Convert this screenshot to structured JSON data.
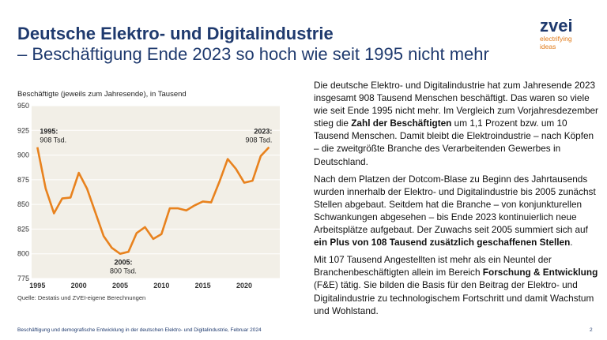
{
  "header": {
    "title": "Deutsche Elektro- und Digitalindustrie",
    "subtitle": "– Beschäftigung Ende 2023 so hoch wie seit 1995 nicht mehr"
  },
  "logo": {
    "word": "zvei",
    "line1": "electrifying",
    "line2": "ideas"
  },
  "chart_data": {
    "type": "line",
    "title": "Beschäftigte (jeweils zum Jahresende), in Tausend",
    "xlabel": "",
    "ylabel": "",
    "x": [
      1995,
      1996,
      1997,
      1998,
      1999,
      2000,
      2001,
      2002,
      2003,
      2004,
      2005,
      2006,
      2007,
      2008,
      2009,
      2010,
      2011,
      2012,
      2013,
      2014,
      2015,
      2016,
      2017,
      2018,
      2019,
      2020,
      2021,
      2022,
      2023
    ],
    "values": [
      908,
      866,
      841,
      856,
      857,
      882,
      866,
      842,
      818,
      806,
      800,
      802,
      821,
      827,
      815,
      820,
      846,
      846,
      844,
      849,
      853,
      852,
      873,
      896,
      886,
      872,
      874,
      899,
      908
    ],
    "ylim": [
      775,
      950
    ],
    "xlim": [
      1994.3,
      2024.3
    ],
    "yticks": [
      "950",
      "925",
      "900",
      "875",
      "850",
      "825",
      "800",
      "775"
    ],
    "xticks": [
      "1995",
      "2000",
      "2005",
      "2010",
      "2015",
      "2020"
    ],
    "grid": true,
    "line_color": "#e8821e",
    "background_color": "#f2efe7",
    "annotations": {
      "start": {
        "year": "1995:",
        "value": "908 Tsd."
      },
      "min": {
        "year": "2005:",
        "value": "800 Tsd."
      },
      "end": {
        "year": "2023:",
        "value": "908 Tsd."
      }
    }
  },
  "source": "Quelle: Destatis und ZVEI-eigene Berechnungen",
  "body": {
    "p1_a": "Die deutsche Elektro- und Digitalindustrie hat zum Jahresende 2023 insgesamt 908 Tausend Menschen beschäftigt. Das waren so viele wie seit Ende 1995 nicht mehr. Im Vergleich zum Vorjahresdezember stieg die ",
    "p1_b": "Zahl der Beschäftigten",
    "p1_c": " um 1,1 Prozent bzw. um 10 Tausend Menschen. Damit bleibt die Elektroindustrie – nach Köpfen – die zweitgrößte Branche des Verarbeitenden Gewerbes in Deutschland.",
    "p2_a": "Nach dem Platzen der Dotcom-Blase zu Beginn des Jahrtausends wurden innerhalb der Elektro- und Digitalindustrie bis 2005 zunächst Stellen abgebaut. Seitdem hat die Branche – von konjunkturellen Schwankungen abgesehen – bis Ende 2023 kontinuierlich neue Arbeitsplätze aufgebaut. Der Zuwachs seit 2005 summiert sich auf ",
    "p2_b": "ein Plus von 108 Tausend zusätzlich geschaffenen Stellen",
    "p2_c": ".",
    "p3_a": "Mit 107 Tausend Angestellten ist mehr als ein Neuntel der Branchenbeschäftigten allein im Bereich ",
    "p3_b": "Forschung & Entwicklung",
    "p3_c": " (F&E) tätig. Sie bilden die Basis für den Beitrag der Elektro- und Digitalindustrie zu technologischem Fortschritt und damit Wachstum und Wohlstand."
  },
  "footer": {
    "text": "Beschäftigung und demografische Entwicklung in der deutschen Elektro- und Digitalindustrie, Februar 2024",
    "page": "2"
  }
}
